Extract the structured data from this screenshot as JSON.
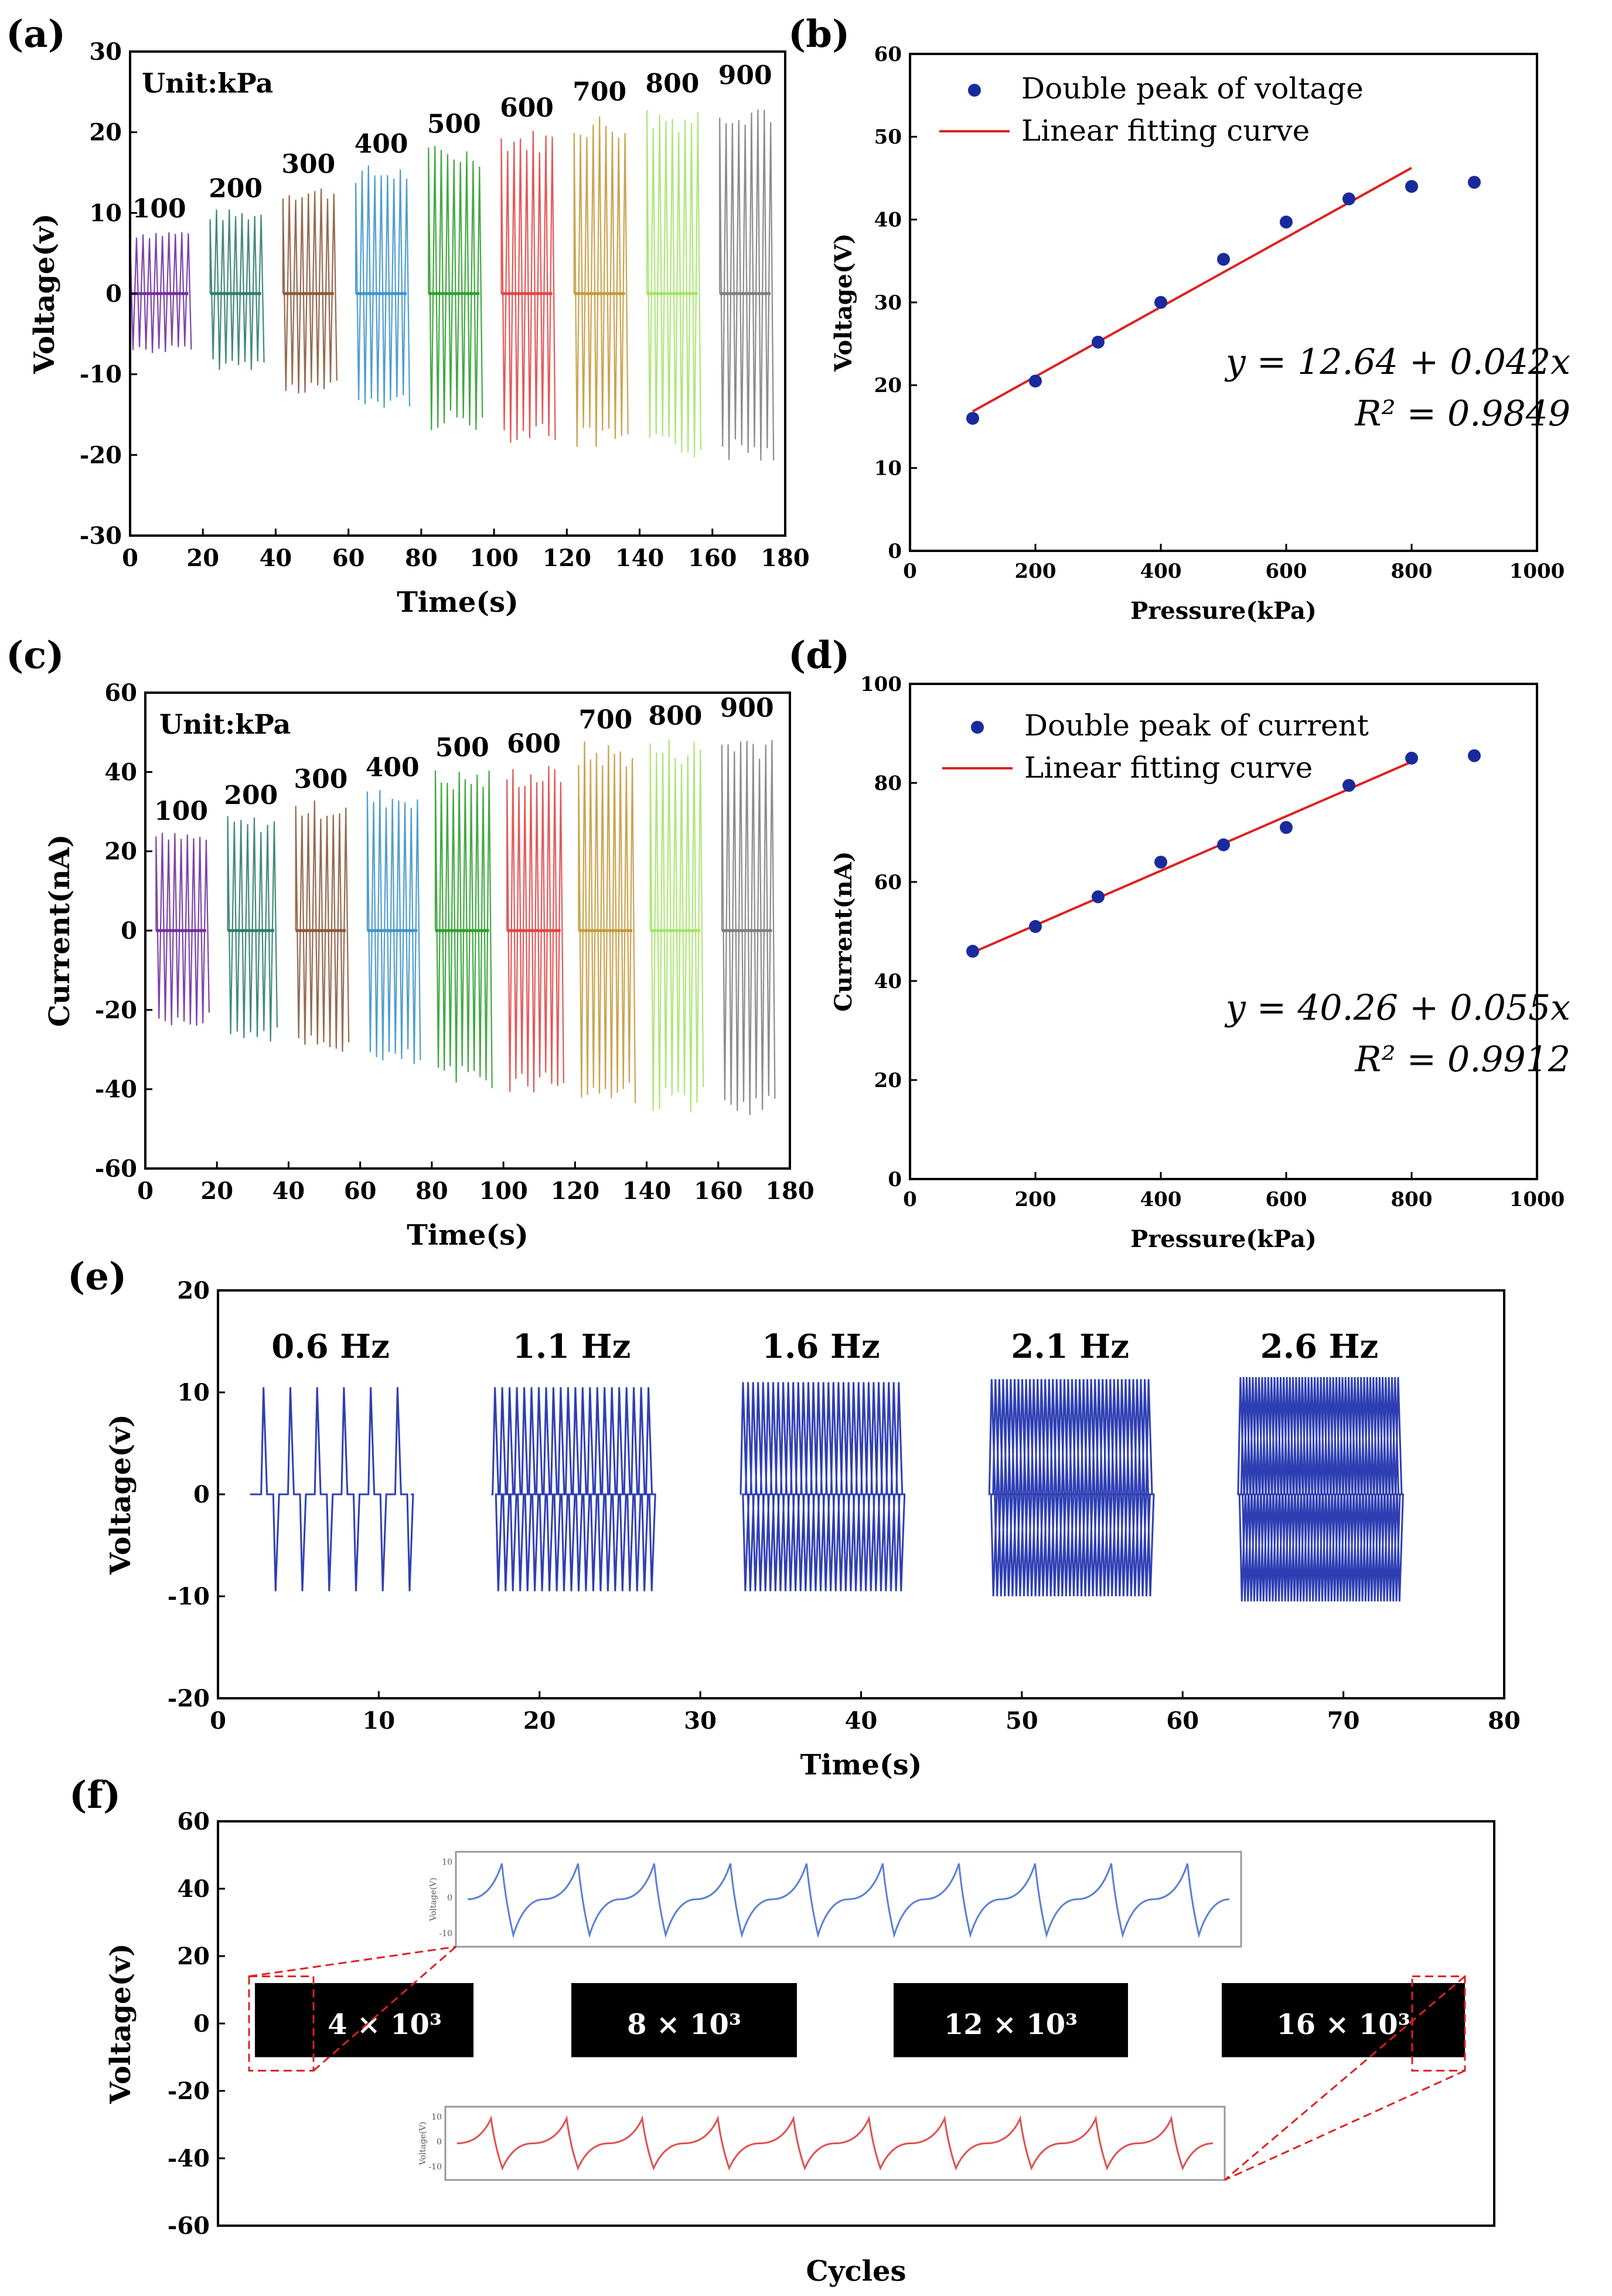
{
  "chart_data": [
    {
      "panel_label": "(a)",
      "type": "line",
      "title": "",
      "annotation": "Unit:kPa",
      "xlabel": "Time(s)",
      "ylabel": "Voltage(v)",
      "xlim": [
        0,
        180
      ],
      "ylim": [
        -30,
        30
      ],
      "xticks": [
        "0",
        "20",
        "40",
        "60",
        "80",
        "100",
        "120",
        "140",
        "160",
        "180"
      ],
      "yticks": [
        "-30",
        "-20",
        "-10",
        "0",
        "10",
        "20",
        "30"
      ],
      "series": [
        {
          "name": "100",
          "x0": 0,
          "x1": 16,
          "pos": 8,
          "neg": -7.5,
          "color": "#7030a0"
        },
        {
          "name": "200",
          "x0": 22,
          "x1": 36,
          "pos": 10.5,
          "neg": -9.5,
          "color": "#2e7d6b"
        },
        {
          "name": "300",
          "x0": 42,
          "x1": 56,
          "pos": 13.5,
          "neg": -12.5,
          "color": "#8b5a3c"
        },
        {
          "name": "400",
          "x0": 62,
          "x1": 76,
          "pos": 16,
          "neg": -14.5,
          "color": "#3d94c9"
        },
        {
          "name": "500",
          "x0": 82,
          "x1": 96,
          "pos": 18.5,
          "neg": -17,
          "color": "#2ca02c"
        },
        {
          "name": "600",
          "x0": 102,
          "x1": 116,
          "pos": 20.5,
          "neg": -18.5,
          "color": "#e04646"
        },
        {
          "name": "700",
          "x0": 122,
          "x1": 136,
          "pos": 22.5,
          "neg": -19.5,
          "color": "#c49a3c"
        },
        {
          "name": "800",
          "x0": 142,
          "x1": 156,
          "pos": 23.5,
          "neg": -20.5,
          "color": "#a6e36b"
        },
        {
          "name": "900",
          "x0": 162,
          "x1": 176,
          "pos": 24.5,
          "neg": -21,
          "color": "#7f7f7f"
        }
      ]
    },
    {
      "panel_label": "(b)",
      "type": "scatter",
      "title": "",
      "xlabel": "Pressure(kPa)",
      "ylabel": "Voltage(V)",
      "xlim": [
        0,
        1000
      ],
      "ylim": [
        0,
        60
      ],
      "xticks": [
        "0",
        "200",
        "400",
        "600",
        "800",
        "1000"
      ],
      "yticks": [
        "0",
        "10",
        "20",
        "30",
        "40",
        "50",
        "60"
      ],
      "legend": [
        "Double peak of  voltage",
        "Linear fitting curve"
      ],
      "x": [
        100,
        200,
        300,
        400,
        500,
        600,
        700,
        800,
        900
      ],
      "y": [
        16,
        20.5,
        25.2,
        30,
        35.2,
        39.7,
        42.5,
        44,
        44.5
      ],
      "fit": {
        "intercept": 12.64,
        "slope": 0.042,
        "x_range": [
          100,
          800
        ]
      },
      "equation": "y = 12.64 + 0.042x",
      "r2": "R² = 0.9849"
    },
    {
      "panel_label": "(c)",
      "type": "line",
      "title": "",
      "annotation": "Unit:kPa",
      "xlabel": "Time(s)",
      "ylabel": "Current(nA)",
      "xlim": [
        0,
        180
      ],
      "ylim": [
        -60,
        60
      ],
      "xticks": [
        "0",
        "20",
        "40",
        "60",
        "80",
        "100",
        "120",
        "140",
        "160",
        "180"
      ],
      "yticks": [
        "-60",
        "-40",
        "-20",
        "0",
        "20",
        "40",
        "60"
      ],
      "series": [
        {
          "name": "100",
          "x0": 3,
          "x1": 17,
          "pos": 25,
          "neg": -24,
          "color": "#7030a0"
        },
        {
          "name": "200",
          "x0": 23,
          "x1": 36,
          "pos": 29,
          "neg": -28,
          "color": "#2e7d6b"
        },
        {
          "name": "300",
          "x0": 42,
          "x1": 56,
          "pos": 33,
          "neg": -31,
          "color": "#8b5a3c"
        },
        {
          "name": "400",
          "x0": 62,
          "x1": 76,
          "pos": 36,
          "neg": -35,
          "color": "#3d94c9"
        },
        {
          "name": "500",
          "x0": 81,
          "x1": 96,
          "pos": 41,
          "neg": -40,
          "color": "#2ca02c"
        },
        {
          "name": "600",
          "x0": 101,
          "x1": 116,
          "pos": 42,
          "neg": -41,
          "color": "#e04646"
        },
        {
          "name": "700",
          "x0": 121,
          "x1": 136,
          "pos": 48,
          "neg": -44,
          "color": "#c49a3c"
        },
        {
          "name": "800",
          "x0": 141,
          "x1": 155,
          "pos": 49,
          "neg": -46,
          "color": "#a6e36b"
        },
        {
          "name": "900",
          "x0": 161,
          "x1": 175,
          "pos": 51,
          "neg": -49,
          "color": "#7f7f7f"
        }
      ]
    },
    {
      "panel_label": "(d)",
      "type": "scatter",
      "title": "",
      "xlabel": "Pressure(kPa)",
      "ylabel": "Current(nA)",
      "xlim": [
        0,
        1000
      ],
      "ylim": [
        0,
        100
      ],
      "xticks": [
        "0",
        "200",
        "400",
        "600",
        "800",
        "1000"
      ],
      "yticks": [
        "0",
        "20",
        "40",
        "60",
        "80",
        "100"
      ],
      "legend": [
        "Double peak of  current",
        "Linear fitting curve"
      ],
      "x": [
        100,
        200,
        300,
        400,
        500,
        600,
        700,
        800,
        900
      ],
      "y": [
        46,
        51,
        57,
        64,
        67.5,
        71,
        79.5,
        85,
        85.5
      ],
      "fit": {
        "intercept": 40.26,
        "slope": 0.055,
        "x_range": [
          100,
          800
        ]
      },
      "equation": "y = 40.26 + 0.055x",
      "r2": "R² = 0.9912"
    },
    {
      "panel_label": "(e)",
      "type": "line",
      "title": "",
      "xlabel": "Time(s)",
      "ylabel": "Voltage(v)",
      "xlim": [
        0,
        80
      ],
      "ylim": [
        -20,
        20
      ],
      "xticks": [
        "0",
        "10",
        "20",
        "30",
        "40",
        "50",
        "60",
        "70",
        "80"
      ],
      "yticks": [
        "-20",
        "-10",
        "0",
        "10",
        "20"
      ],
      "series": [
        {
          "name": "0.6 Hz",
          "freq": 0.6,
          "x0": 2,
          "x1": 12,
          "pos": 10.5,
          "neg": -9.5
        },
        {
          "name": "1.1 Hz",
          "freq": 1.1,
          "x0": 17,
          "x1": 27,
          "pos": 10.5,
          "neg": -9.5
        },
        {
          "name": "1.6 Hz",
          "freq": 1.6,
          "x0": 32.5,
          "x1": 42.5,
          "pos": 11,
          "neg": -9.5
        },
        {
          "name": "2.1 Hz",
          "freq": 2.1,
          "x0": 48,
          "x1": 58,
          "pos": 11.3,
          "neg": -10
        },
        {
          "name": "2.6 Hz",
          "freq": 2.6,
          "x0": 63.5,
          "x1": 73.5,
          "pos": 11.5,
          "neg": -10.5
        }
      ]
    },
    {
      "panel_label": "(f)",
      "type": "line",
      "title": "",
      "xlabel": "Cycles",
      "ylabel": "Voltage(v)",
      "ylim": [
        -60,
        60
      ],
      "yticks": [
        "-60",
        "-40",
        "-20",
        "0",
        "20",
        "40",
        "60"
      ],
      "blocks": [
        {
          "label": "4 × 10³"
        },
        {
          "label": "8 × 10³"
        },
        {
          "label": "12 × 10³"
        },
        {
          "label": "16 × 10³"
        }
      ],
      "insets": [
        {
          "name": "inset-top",
          "ylabel": "Voltage(V)",
          "yticks": [
            "10",
            "0",
            "-10"
          ],
          "color": "#5b7fd4"
        },
        {
          "name": "inset-bottom",
          "ylabel": "Voltage(V)",
          "yticks": [
            "10",
            "0",
            "-10"
          ],
          "color": "#e05050"
        }
      ]
    }
  ]
}
